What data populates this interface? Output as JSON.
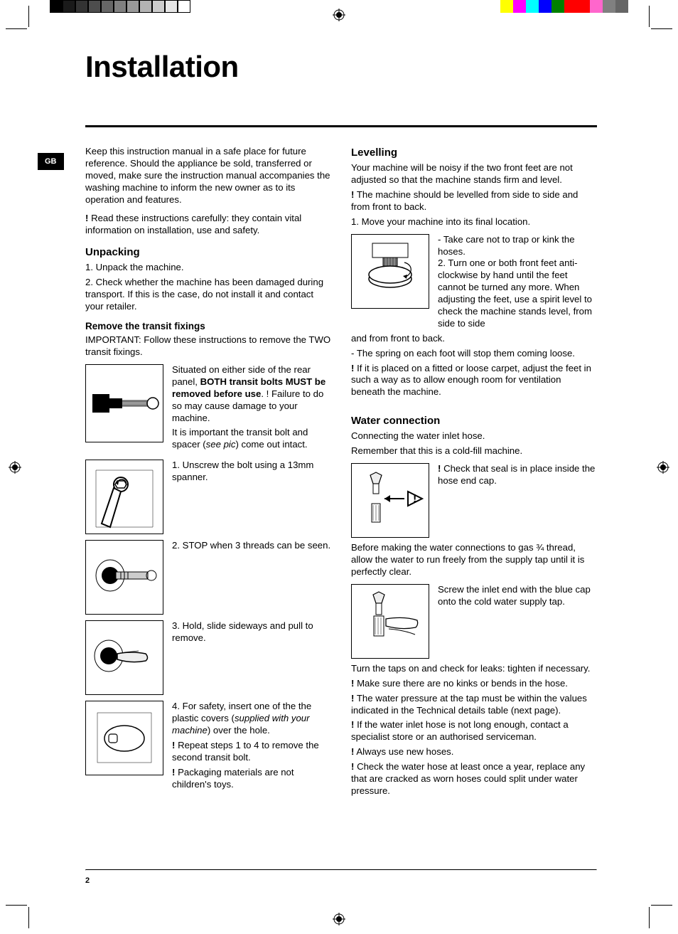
{
  "marks": {
    "gray_bar": [
      "#000000",
      "#1a1a1a",
      "#333333",
      "#4d4d4d",
      "#666666",
      "#808080",
      "#999999",
      "#b3b3b3",
      "#cccccc",
      "#e6e6e6",
      "#ffffff"
    ],
    "color_bar": [
      "#ffff00",
      "#ff00ff",
      "#00ffff",
      "#0000ff",
      "#008000",
      "#ff0000",
      "#ff0000",
      "#ff66cc",
      "#808080",
      "#666666"
    ]
  },
  "tab": "GB",
  "title": "Installation",
  "page_number": "2",
  "left": {
    "intro": "Keep this instruction manual in a safe place for future reference. Should the appliance be sold, transferred or moved, make sure the instruction manual accompanies the washing machine to inform the new owner as to its operation and features.",
    "intro2_prefix": "!",
    "intro2": " Read these instructions carefully: they contain vital information on installation, use and safety.",
    "unpacking_h": "Unpacking",
    "unpack1": "1. Unpack the machine.",
    "unpack2": "2. Check whether the machine has been damaged during transport. If this is the case, do not install it and contact your retailer.",
    "fixings_h": "Remove the transit fixings",
    "fixings_intro": "IMPORTANT: Follow these instructions to remove the TWO transit fixings.",
    "fixings_p1a": "Situated on either side of the rear panel, ",
    "fixings_p1b": "BOTH transit bolts MUST be removed before use",
    "fixings_p1c": ". ",
    "fixings_p1d": "! Failure to do so may cause damage to your machine.",
    "fixings_p2a": "It is important the transit bolt and spacer (",
    "fixings_p2b": "see pic",
    "fixings_p2c": ") come out intact.",
    "step1": "1. Unscrew the bolt using a 13mm spanner.",
    "step2": "2. STOP when 3 threads can be seen.",
    "step3": "3. Hold, slide sideways and pull to remove.",
    "step4a": "4. For safety, insert one of the the plastic covers (",
    "step4b": "supplied with your machine",
    "step4c": ") over the hole.",
    "step4d_prefix": "!",
    "step4d": " Repeat steps 1 to 4 to remove the second transit bolt.",
    "step4e_prefix": "!",
    "step4e": " Packaging materials are not children's toys."
  },
  "right": {
    "level_h": "Levelling",
    "level_p1": "Your machine will be noisy if the two front feet are not adjusted so that the machine stands firm and level.",
    "level_p2_prefix": "!",
    "level_p2": " The machine should be levelled from side to side and from front to back.",
    "level_p3": "1. Move your machine into its final location.",
    "level_side": "- Take care not to trap or kink the hoses.\n2. Turn one or both front feet anti-clockwise by hand until the feet cannot be turned any more. When adjusting the feet, use a spirit level to check the machine stands level, from side to side",
    "level_p4": "and from front to back.",
    "level_p5": "- The spring on each foot will stop them coming loose.",
    "level_p6_prefix": "!",
    "level_p6": " If it is placed on a fitted or loose carpet, adjust the feet in such a way as to allow enough room for ventilation beneath the machine.",
    "water_h": "Water connection",
    "water_p1": "Connecting the water inlet hose.",
    "water_p2": "Remember that this is a cold-fill machine.",
    "water_side1_prefix": "!",
    "water_side1": " Check that seal is in place inside the hose end cap.",
    "water_p3": "Before making the water connections to gas ¾ thread, allow the water to run freely from the supply tap until it is perfectly clear.",
    "water_side2": "Screw the inlet end with the blue cap onto the cold water supply tap.",
    "water_p4": "Turn the taps on and check for leaks: tighten if necessary.",
    "water_p5_prefix": "!",
    "water_p5": " Make sure there are no kinks or bends in the hose.",
    "water_p6_prefix": "!",
    "water_p6": " The water pressure at the tap must be within the values indicated in the Technical details table (next page).",
    "water_p7_prefix": "!",
    "water_p7": " If the water inlet hose is not long enough, contact a specialist store or an authorised serviceman.",
    "water_p8_prefix": "!",
    "water_p8": " Always use new hoses.",
    "water_p9_prefix": "!",
    "water_p9": " Check the water hose at least once a year, replace any that are cracked as worn hoses could split under water pressure."
  }
}
